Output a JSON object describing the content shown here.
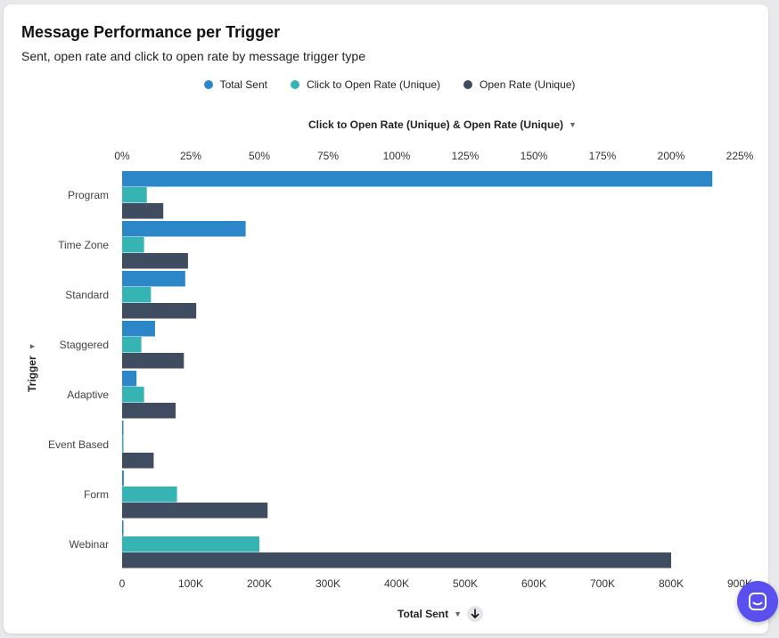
{
  "header": {
    "title": "Message Performance per Trigger",
    "subtitle": "Sent, open rate and click to open rate by message trigger type"
  },
  "legend": [
    {
      "label": "Total Sent",
      "color": "#2c87c8"
    },
    {
      "label": "Click to Open Rate (Unique)",
      "color": "#36b3b3"
    },
    {
      "label": "Open Rate (Unique)",
      "color": "#404d60"
    }
  ],
  "axes": {
    "top_title": "Click to Open Rate (Unique) & Open Rate (Unique)",
    "bottom_title": "Total Sent",
    "y_title": "Trigger"
  },
  "chart_data": {
    "type": "bar",
    "orientation": "horizontal",
    "categories": [
      "Program",
      "Time Zone",
      "Standard",
      "Staggered",
      "Adaptive",
      "Event Based",
      "Form",
      "Webinar"
    ],
    "series": [
      {
        "name": "Total Sent",
        "axis": "bottom",
        "color": "#2c87c8",
        "values": [
          860000,
          180000,
          92000,
          48000,
          21000,
          1500,
          2500,
          2000
        ]
      },
      {
        "name": "Click to Open Rate (Unique)",
        "axis": "top",
        "unit": "%",
        "color": "#36b3b3",
        "values": [
          9,
          8,
          10.5,
          7,
          8,
          0.5,
          20,
          50
        ]
      },
      {
        "name": "Open Rate (Unique)",
        "axis": "top",
        "unit": "%",
        "color": "#404d60",
        "values": [
          15,
          24,
          27,
          22.5,
          19.5,
          11.5,
          53,
          200
        ]
      }
    ],
    "top_axis": {
      "range": [
        0,
        225
      ],
      "ticks": [
        "0%",
        "25%",
        "50%",
        "75%",
        "100%",
        "125%",
        "150%",
        "175%",
        "200%",
        "225%"
      ]
    },
    "bottom_axis": {
      "range": [
        0,
        900000
      ],
      "ticks": [
        "0",
        "100K",
        "200K",
        "300K",
        "400K",
        "500K",
        "600K",
        "700K",
        "800K",
        "900K"
      ]
    },
    "xlabel": "Total Sent",
    "ylabel": "Trigger"
  },
  "icons": {
    "sort": "arrow-down-icon",
    "chat": "chat-icon",
    "caret": "caret-down-icon"
  }
}
